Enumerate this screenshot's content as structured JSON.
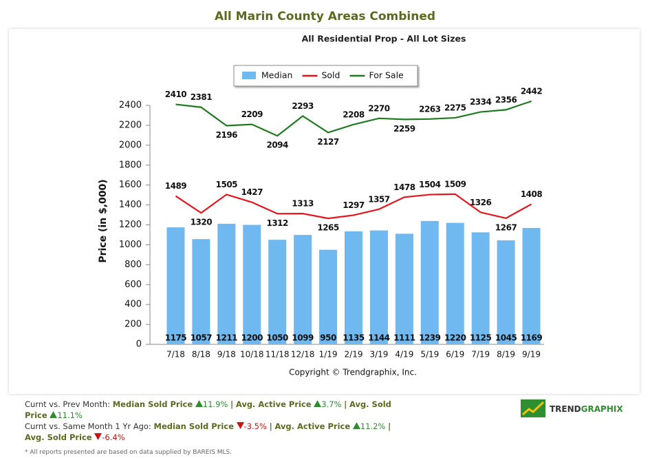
{
  "chart_data": {
    "type": "bar_line",
    "title": "All Marin County Areas Combined",
    "subtitle": "All Residential Prop - All Lot Sizes",
    "y_label": "Price (in $,000)",
    "annotation": "Copyright © Trendgraphix, Inc.",
    "categories": [
      "7/18",
      "8/18",
      "9/18",
      "10/18",
      "11/18",
      "12/18",
      "1/19",
      "2/19",
      "3/19",
      "4/19",
      "5/19",
      "6/19",
      "7/19",
      "8/19",
      "9/19"
    ],
    "series": [
      {
        "name": "Median",
        "type": "bar",
        "color": "#70b8f0",
        "values": [
          1175,
          1057,
          1211,
          1200,
          1050,
          1099,
          950,
          1135,
          1144,
          1111,
          1239,
          1220,
          1125,
          1045,
          1169
        ]
      },
      {
        "name": "Sold",
        "type": "line",
        "color": "#e8141c",
        "values": [
          1489,
          1320,
          1505,
          1427,
          1312,
          1313,
          1265,
          1297,
          1357,
          1478,
          1504,
          1509,
          1326,
          1267,
          1408
        ]
      },
      {
        "name": "For Sale",
        "type": "line",
        "color": "#1e7a1e",
        "values": [
          2410,
          2381,
          2196,
          2209,
          2094,
          2293,
          2127,
          2208,
          2270,
          2259,
          2263,
          2275,
          2334,
          2356,
          2442
        ]
      }
    ],
    "ylim": [
      0,
      2400
    ],
    "yticks": [
      0,
      200,
      400,
      600,
      800,
      1000,
      1200,
      1400,
      1600,
      1800,
      2000,
      2200,
      2400
    ],
    "legend": "top"
  },
  "footer": {
    "separator": "|",
    "lines": [
      {
        "prefix": "Curnt vs. Prev Month:",
        "items": [
          {
            "label": "Median Sold Price",
            "direction": "up",
            "change": "11.9%"
          },
          {
            "label": "Avg. Active Price",
            "direction": "up",
            "change": "3.7%"
          },
          {
            "label": "Avg. Sold Price",
            "direction": "up",
            "change": "11.1%"
          }
        ]
      },
      {
        "prefix": "Curnt vs. Same Month 1 Yr Ago:",
        "items": [
          {
            "label": "Median Sold Price",
            "direction": "down",
            "change": "-3.5%"
          },
          {
            "label": "Avg. Active Price",
            "direction": "up",
            "change": "11.2%"
          },
          {
            "label": "Avg. Sold Price",
            "direction": "down",
            "change": "-6.4%"
          }
        ]
      }
    ],
    "disclaimer": "* All reports presented are based on data supplied by BAREIS MLS.",
    "logo": {
      "part1": "TREND",
      "part2": "GRAPHIX"
    }
  }
}
